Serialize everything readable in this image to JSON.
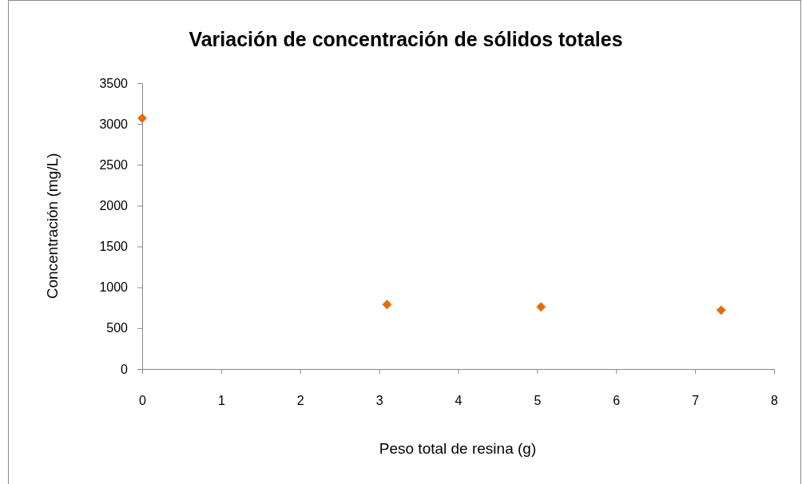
{
  "chart_data": {
    "type": "scatter",
    "title": "Variación de concentración de sólidos totales",
    "xlabel": "Peso total de resina  (g)",
    "ylabel": "Concentración  (mg/L)",
    "x": [
      0,
      3.1,
      5.05,
      7.33
    ],
    "series": [
      {
        "color": "#e46c0a",
        "values": [
          3070,
          790,
          760,
          720
        ]
      }
    ],
    "xlim": [
      0,
      8
    ],
    "xticks": [
      0,
      1,
      2,
      3,
      4,
      5,
      6,
      7,
      8
    ],
    "ylim": [
      0,
      3500
    ],
    "yticks": [
      0,
      500,
      1000,
      1500,
      2000,
      2500,
      3000,
      3500
    ],
    "grid": false,
    "marker": "diamond"
  }
}
